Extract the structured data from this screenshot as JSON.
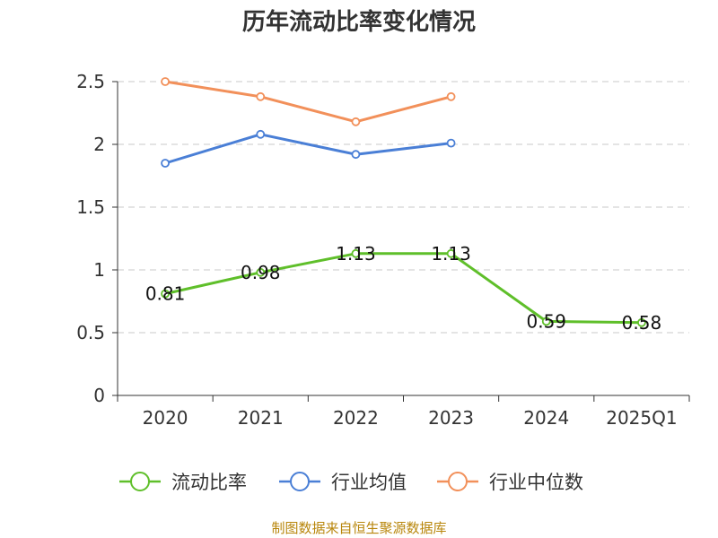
{
  "chart_data": {
    "type": "line",
    "title": "历年流动比率变化情况",
    "categories": [
      "2020",
      "2021",
      "2022",
      "2023",
      "2024",
      "2025Q1"
    ],
    "ylim": [
      0,
      2.5
    ],
    "yticks": [
      0,
      0.5,
      1,
      1.5,
      2,
      2.5
    ],
    "ytick_labels": [
      "0",
      "0.5",
      "1",
      "1.5",
      "2",
      "2.5"
    ],
    "grid": true,
    "legend_position": "bottom",
    "series": [
      {
        "name": "流动比率",
        "color": "#5fbf2a",
        "values": [
          0.81,
          0.98,
          1.13,
          1.13,
          0.59,
          0.58
        ],
        "labels": [
          "0.81",
          "0.98",
          "1.13",
          "1.13",
          "0.59",
          "0.58"
        ]
      },
      {
        "name": "行业均值",
        "color": "#4a7fd6",
        "values": [
          1.85,
          2.08,
          1.92,
          2.01,
          null,
          null
        ]
      },
      {
        "name": "行业中位数",
        "color": "#f2905a",
        "values": [
          2.5,
          2.38,
          2.18,
          2.38,
          null,
          null
        ]
      }
    ]
  },
  "footer": {
    "source": "制图数据来自恒生聚源数据库"
  }
}
